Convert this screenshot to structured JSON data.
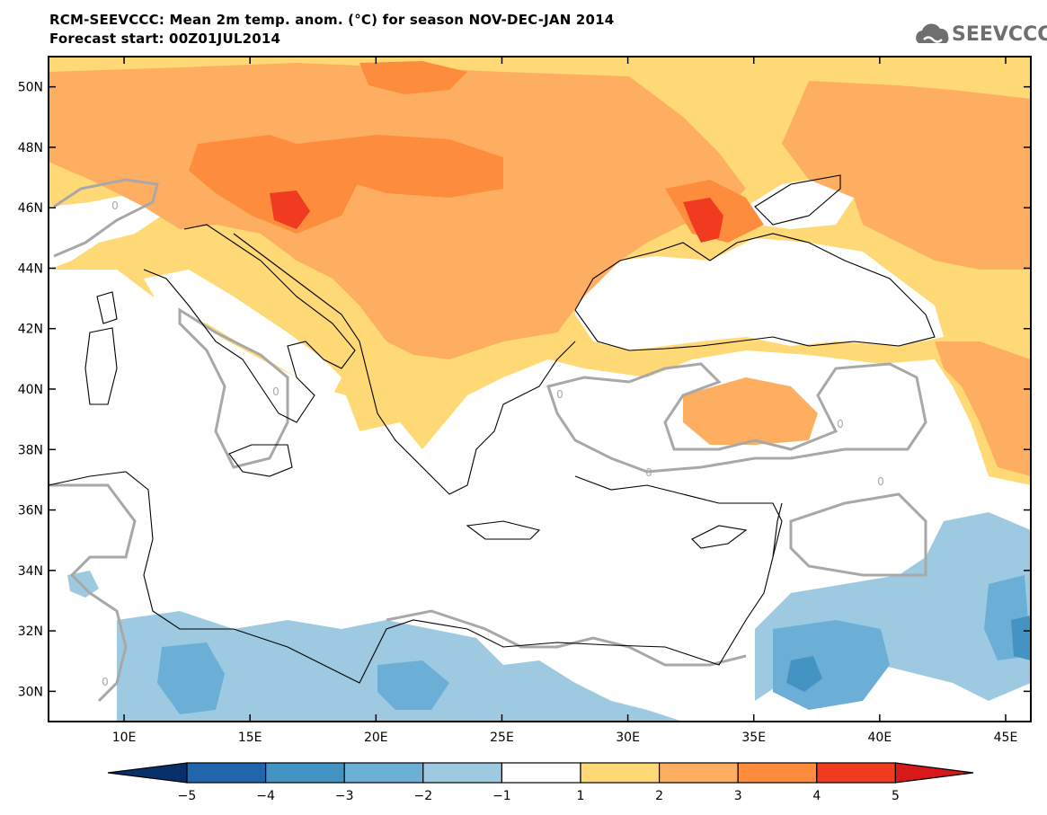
{
  "title": {
    "line1": "RCM-SEEVCCC: Mean 2m temp. anom. (°C) for season NOV-DEC-JAN 2014",
    "line2": "Forecast start: 00Z01JUL2014"
  },
  "logo": {
    "text": "SEEVCCC",
    "icon": "cloud-logo-icon",
    "color": "#6f6f6f"
  },
  "map": {
    "lon_range": [
      7,
      46
    ],
    "lat_range": [
      29,
      51
    ],
    "lon_ticks": [
      {
        "value": 10,
        "label": "10E"
      },
      {
        "value": 15,
        "label": "15E"
      },
      {
        "value": 20,
        "label": "20E"
      },
      {
        "value": 25,
        "label": "25E"
      },
      {
        "value": 30,
        "label": "30E"
      },
      {
        "value": 35,
        "label": "35E"
      },
      {
        "value": 40,
        "label": "40E"
      },
      {
        "value": 45,
        "label": "45E"
      }
    ],
    "lat_ticks": [
      {
        "value": 30,
        "label": "30N"
      },
      {
        "value": 32,
        "label": "32N"
      },
      {
        "value": 34,
        "label": "34N"
      },
      {
        "value": 36,
        "label": "36N"
      },
      {
        "value": 38,
        "label": "38N"
      },
      {
        "value": 40,
        "label": "40N"
      },
      {
        "value": 42,
        "label": "42N"
      },
      {
        "value": 44,
        "label": "44N"
      },
      {
        "value": 46,
        "label": "46N"
      },
      {
        "value": 48,
        "label": "48N"
      },
      {
        "value": 50,
        "label": "50N"
      }
    ],
    "contour_zero_label": "0"
  },
  "colorbar": {
    "levels": [
      "−5",
      "−4",
      "−3",
      "−2",
      "−1",
      "1",
      "2",
      "3",
      "4",
      "5"
    ],
    "colors": [
      "#08306b",
      "#2166ac",
      "#4393c3",
      "#6baed6",
      "#9ecae1",
      "#ffffff",
      "#fed976",
      "#fdae61",
      "#fd8d3c",
      "#f03b20",
      "#d7191c"
    ]
  },
  "palette": {
    "anom_1_2": "#fed976",
    "anom_2_3": "#fdae61",
    "anom_3_4": "#fd8d3c",
    "anom_4_5": "#f03b20",
    "anom_m1_m2": "#9ecae1",
    "anom_m2_m3": "#6baed6",
    "anom_m3_m4": "#4393c3",
    "contour_zero": "#a8a8a8",
    "coastline": "#000000"
  }
}
